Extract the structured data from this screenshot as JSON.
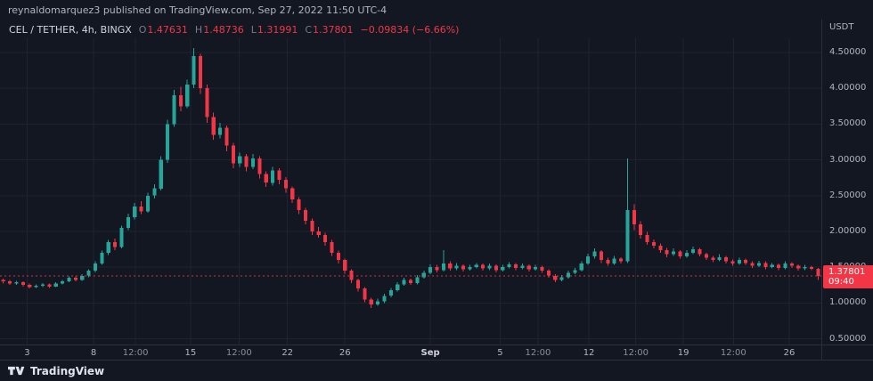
{
  "header": {
    "published_line": "reynaldomarquez3 published on TradingView.com, Sep 27, 2022 11:50 UTC-4"
  },
  "legend": {
    "symbol": "CEL / TETHER, 4h, BINGX",
    "open_label": "O",
    "open": "1.47631",
    "high_label": "H",
    "high": "1.48736",
    "low_label": "L",
    "low": "1.31991",
    "close_label": "C",
    "close": "1.37801",
    "change": "−0.09834 (−6.66%)"
  },
  "price_scale": {
    "currency": "USDT",
    "last_price_label": "1.37801",
    "countdown": "09:40"
  },
  "footer": {
    "brand": "TradingView"
  },
  "colors": {
    "background": "#131722",
    "grid": "#1e2330",
    "up": "#26a69a",
    "down": "#f23645",
    "text": "#d1d4dc",
    "muted": "#787b86",
    "axis_text": "#b2b5be",
    "badge_bg": "#f23645",
    "divider": "#2a2e39"
  },
  "chart_data": {
    "type": "candlestick",
    "title": "CEL / TETHER, 4h, BINGX",
    "pair": "CEL/USDT",
    "exchange": "BINGX",
    "interval": "4h",
    "x_range": "Aug 3 – Sep 27, 2022",
    "last_price": 1.37801,
    "last_candle": {
      "open": 1.47631,
      "high": 1.48736,
      "low": 1.31991,
      "close": 1.37801,
      "change": -0.09834,
      "change_pct": -6.66
    },
    "y_ticks": [
      {
        "label": "4.50000",
        "value": 4.5
      },
      {
        "label": "4.00000",
        "value": 4.0
      },
      {
        "label": "3.50000",
        "value": 3.5
      },
      {
        "label": "3.00000",
        "value": 3.0
      },
      {
        "label": "2.50000",
        "value": 2.5
      },
      {
        "label": "2.00000",
        "value": 2.0
      },
      {
        "label": "1.50000",
        "value": 1.5
      },
      {
        "label": "1.00000",
        "value": 1.0
      },
      {
        "label": "0.50000",
        "value": 0.5
      }
    ],
    "x_ticks": [
      {
        "label": "3",
        "f": 0.033,
        "em": true
      },
      {
        "label": "8",
        "f": 0.114,
        "em": true
      },
      {
        "label": "12:00",
        "f": 0.165,
        "em": false
      },
      {
        "label": "15",
        "f": 0.232,
        "em": true
      },
      {
        "label": "12:00",
        "f": 0.291,
        "em": false
      },
      {
        "label": "22",
        "f": 0.35,
        "em": true
      },
      {
        "label": "26",
        "f": 0.42,
        "em": true
      },
      {
        "label": "Sep",
        "f": 0.524,
        "em": true,
        "month": true
      },
      {
        "label": "5",
        "f": 0.609,
        "em": true
      },
      {
        "label": "12:00",
        "f": 0.655,
        "em": false
      },
      {
        "label": "12",
        "f": 0.717,
        "em": true
      },
      {
        "label": "12:00",
        "f": 0.774,
        "em": false
      },
      {
        "label": "19",
        "f": 0.832,
        "em": true
      },
      {
        "label": "12:00",
        "f": 0.893,
        "em": false
      },
      {
        "label": "26",
        "f": 0.961,
        "em": true
      }
    ],
    "ohlc": [
      [
        1.32,
        1.34,
        1.27,
        1.3
      ],
      [
        1.3,
        1.32,
        1.25,
        1.27
      ],
      [
        1.27,
        1.31,
        1.25,
        1.29
      ],
      [
        1.29,
        1.3,
        1.23,
        1.25
      ],
      [
        1.25,
        1.27,
        1.2,
        1.22
      ],
      [
        1.22,
        1.26,
        1.21,
        1.24
      ],
      [
        1.24,
        1.28,
        1.22,
        1.26
      ],
      [
        1.26,
        1.27,
        1.21,
        1.23
      ],
      [
        1.23,
        1.29,
        1.22,
        1.27
      ],
      [
        1.27,
        1.32,
        1.26,
        1.3
      ],
      [
        1.3,
        1.37,
        1.29,
        1.35
      ],
      [
        1.35,
        1.37,
        1.3,
        1.32
      ],
      [
        1.32,
        1.4,
        1.31,
        1.38
      ],
      [
        1.38,
        1.47,
        1.36,
        1.45
      ],
      [
        1.45,
        1.58,
        1.43,
        1.55
      ],
      [
        1.55,
        1.73,
        1.53,
        1.7
      ],
      [
        1.7,
        1.88,
        1.67,
        1.85
      ],
      [
        1.85,
        1.9,
        1.74,
        1.78
      ],
      [
        1.78,
        2.08,
        1.76,
        2.05
      ],
      [
        2.05,
        2.25,
        2.02,
        2.2
      ],
      [
        2.2,
        2.4,
        2.17,
        2.35
      ],
      [
        2.35,
        2.42,
        2.24,
        2.28
      ],
      [
        2.28,
        2.54,
        2.26,
        2.5
      ],
      [
        2.5,
        2.66,
        2.46,
        2.6
      ],
      [
        2.6,
        3.05,
        2.57,
        3.0
      ],
      [
        3.0,
        3.56,
        2.96,
        3.5
      ],
      [
        3.5,
        3.98,
        3.46,
        3.9
      ],
      [
        3.9,
        4.02,
        3.68,
        3.75
      ],
      [
        3.75,
        4.12,
        3.72,
        4.05
      ],
      [
        4.05,
        4.56,
        4.0,
        4.45
      ],
      [
        4.45,
        4.48,
        3.92,
        4.0
      ],
      [
        4.0,
        4.05,
        3.52,
        3.6
      ],
      [
        3.6,
        3.66,
        3.28,
        3.35
      ],
      [
        3.35,
        3.52,
        3.3,
        3.45
      ],
      [
        3.45,
        3.48,
        3.12,
        3.2
      ],
      [
        3.2,
        3.24,
        2.88,
        2.95
      ],
      [
        2.95,
        3.1,
        2.9,
        3.05
      ],
      [
        3.05,
        3.08,
        2.84,
        2.9
      ],
      [
        2.9,
        3.08,
        2.87,
        3.02
      ],
      [
        3.02,
        3.05,
        2.74,
        2.8
      ],
      [
        2.8,
        2.84,
        2.62,
        2.68
      ],
      [
        2.68,
        2.9,
        2.64,
        2.85
      ],
      [
        2.85,
        2.88,
        2.66,
        2.72
      ],
      [
        2.72,
        2.76,
        2.54,
        2.6
      ],
      [
        2.6,
        2.63,
        2.4,
        2.45
      ],
      [
        2.45,
        2.48,
        2.24,
        2.3
      ],
      [
        2.3,
        2.33,
        2.1,
        2.15
      ],
      [
        2.15,
        2.18,
        1.95,
        2.0
      ],
      [
        2.0,
        2.06,
        1.91,
        1.95
      ],
      [
        1.95,
        1.98,
        1.8,
        1.85
      ],
      [
        1.85,
        1.88,
        1.66,
        1.7
      ],
      [
        1.7,
        1.73,
        1.55,
        1.6
      ],
      [
        1.6,
        1.62,
        1.41,
        1.45
      ],
      [
        1.45,
        1.47,
        1.28,
        1.32
      ],
      [
        1.32,
        1.34,
        1.16,
        1.2
      ],
      [
        1.2,
        1.22,
        1.01,
        1.05
      ],
      [
        1.05,
        1.07,
        0.93,
        0.98
      ],
      [
        0.98,
        1.06,
        0.96,
        1.02
      ],
      [
        1.02,
        1.13,
        1.0,
        1.1
      ],
      [
        1.1,
        1.21,
        1.08,
        1.18
      ],
      [
        1.18,
        1.29,
        1.16,
        1.26
      ],
      [
        1.26,
        1.35,
        1.24,
        1.32
      ],
      [
        1.32,
        1.34,
        1.25,
        1.28
      ],
      [
        1.28,
        1.39,
        1.26,
        1.36
      ],
      [
        1.36,
        1.45,
        1.34,
        1.42
      ],
      [
        1.42,
        1.54,
        1.4,
        1.5
      ],
      [
        1.5,
        1.53,
        1.43,
        1.46
      ],
      [
        1.46,
        1.74,
        1.44,
        1.55
      ],
      [
        1.55,
        1.58,
        1.45,
        1.48
      ],
      [
        1.48,
        1.56,
        1.46,
        1.52
      ],
      [
        1.52,
        1.54,
        1.44,
        1.47
      ],
      [
        1.47,
        1.53,
        1.45,
        1.5
      ],
      [
        1.5,
        1.56,
        1.48,
        1.53
      ],
      [
        1.53,
        1.55,
        1.45,
        1.48
      ],
      [
        1.48,
        1.55,
        1.46,
        1.52
      ],
      [
        1.52,
        1.54,
        1.43,
        1.46
      ],
      [
        1.46,
        1.53,
        1.44,
        1.5
      ],
      [
        1.5,
        1.57,
        1.48,
        1.54
      ],
      [
        1.54,
        1.56,
        1.46,
        1.49
      ],
      [
        1.49,
        1.55,
        1.47,
        1.52
      ],
      [
        1.52,
        1.54,
        1.44,
        1.47
      ],
      [
        1.47,
        1.53,
        1.45,
        1.5
      ],
      [
        1.5,
        1.52,
        1.42,
        1.45
      ],
      [
        1.45,
        1.47,
        1.35,
        1.38
      ],
      [
        1.38,
        1.4,
        1.29,
        1.32
      ],
      [
        1.32,
        1.39,
        1.3,
        1.36
      ],
      [
        1.36,
        1.45,
        1.34,
        1.42
      ],
      [
        1.42,
        1.49,
        1.4,
        1.46
      ],
      [
        1.46,
        1.58,
        1.44,
        1.55
      ],
      [
        1.55,
        1.69,
        1.53,
        1.65
      ],
      [
        1.65,
        1.76,
        1.62,
        1.72
      ],
      [
        1.72,
        1.74,
        1.56,
        1.6
      ],
      [
        1.6,
        1.63,
        1.52,
        1.55
      ],
      [
        1.55,
        1.66,
        1.53,
        1.62
      ],
      [
        1.62,
        1.64,
        1.55,
        1.58
      ],
      [
        1.58,
        3.02,
        1.56,
        2.3
      ],
      [
        2.3,
        2.38,
        2.02,
        2.1
      ],
      [
        2.1,
        2.14,
        1.9,
        1.95
      ],
      [
        1.95,
        1.99,
        1.81,
        1.85
      ],
      [
        1.85,
        1.89,
        1.76,
        1.8
      ],
      [
        1.8,
        1.83,
        1.7,
        1.74
      ],
      [
        1.74,
        1.77,
        1.64,
        1.68
      ],
      [
        1.68,
        1.76,
        1.66,
        1.72
      ],
      [
        1.72,
        1.74,
        1.62,
        1.65
      ],
      [
        1.65,
        1.74,
        1.63,
        1.7
      ],
      [
        1.7,
        1.79,
        1.68,
        1.75
      ],
      [
        1.75,
        1.77,
        1.65,
        1.68
      ],
      [
        1.68,
        1.7,
        1.6,
        1.63
      ],
      [
        1.63,
        1.66,
        1.57,
        1.6
      ],
      [
        1.6,
        1.68,
        1.58,
        1.64
      ],
      [
        1.64,
        1.66,
        1.55,
        1.58
      ],
      [
        1.58,
        1.61,
        1.52,
        1.55
      ],
      [
        1.55,
        1.63,
        1.53,
        1.6
      ],
      [
        1.6,
        1.62,
        1.53,
        1.56
      ],
      [
        1.56,
        1.58,
        1.49,
        1.52
      ],
      [
        1.52,
        1.59,
        1.5,
        1.56
      ],
      [
        1.56,
        1.58,
        1.47,
        1.5
      ],
      [
        1.5,
        1.56,
        1.48,
        1.53
      ],
      [
        1.53,
        1.55,
        1.46,
        1.49
      ],
      [
        1.49,
        1.58,
        1.47,
        1.55
      ],
      [
        1.55,
        1.57,
        1.49,
        1.52
      ],
      [
        1.52,
        1.54,
        1.45,
        1.48
      ],
      [
        1.48,
        1.53,
        1.46,
        1.5
      ],
      [
        1.5,
        1.52,
        1.46,
        1.476
      ],
      [
        1.476,
        1.487,
        1.32,
        1.378
      ]
    ]
  }
}
